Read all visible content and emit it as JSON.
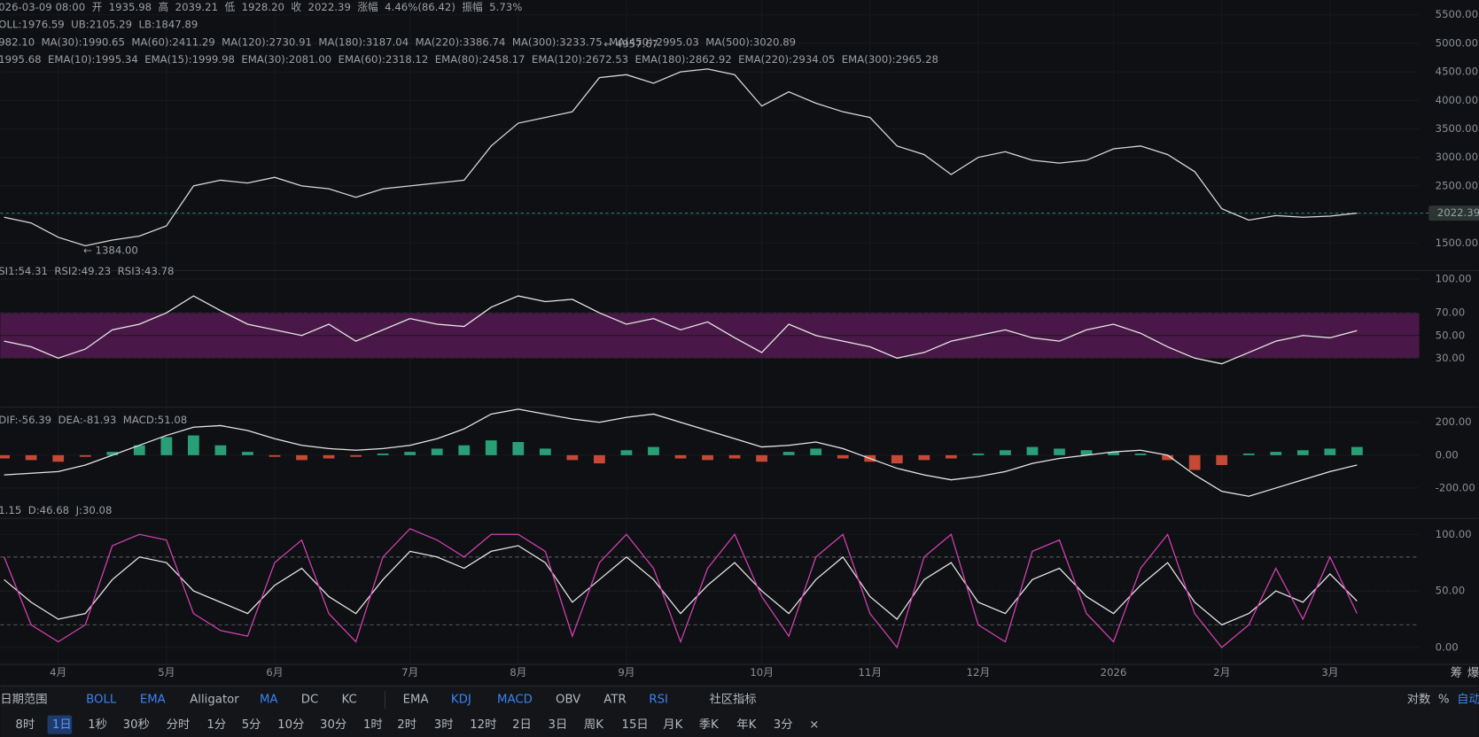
{
  "header": {
    "lines": [
      [
        {
          "text": "026-03-09 08:00",
          "color": "#9aa0a6"
        },
        {
          "text": "开",
          "color": "#9aa0a6"
        },
        {
          "text": "1935.98",
          "color": "#9aa0a6"
        },
        {
          "text": "高",
          "color": "#9aa0a6"
        },
        {
          "text": "2039.21",
          "color": "#9aa0a6"
        },
        {
          "text": "低",
          "color": "#9aa0a6"
        },
        {
          "text": "1928.20",
          "color": "#9aa0a6"
        },
        {
          "text": "收",
          "color": "#9aa0a6"
        },
        {
          "text": "2022.39",
          "color": "#9aa0a6"
        },
        {
          "text": "涨幅",
          "color": "#9aa0a6"
        },
        {
          "text": "4.46%(86.42)",
          "color": "#9aa0a6"
        },
        {
          "text": "振幅",
          "color": "#9aa0a6"
        },
        {
          "text": "5.73%",
          "color": "#9aa0a6"
        }
      ],
      [
        {
          "text": "OLL:1976.59",
          "color": "#e6e6e6"
        },
        {
          "text": "UB:2105.29",
          "color": "#f0e050"
        },
        {
          "text": "LB:1847.89",
          "color": "#e0609a"
        }
      ],
      [
        {
          "text": "982.10",
          "color": "#e6e6e6"
        },
        {
          "text": "MA(30):1990.65",
          "color": "#f0e050"
        },
        {
          "text": "MA(60):2411.29",
          "color": "#e0609a"
        },
        {
          "text": "MA(120):2730.91",
          "color": "#4aa8e0"
        },
        {
          "text": "MA(180):3187.04",
          "color": "#d8f0a0"
        },
        {
          "text": "MA(220):3386.74",
          "color": "#f080a0"
        },
        {
          "text": "MA(300):3233.75",
          "color": "#40d0e0"
        },
        {
          "text": "MA(450):2995.03",
          "color": "#e08030"
        },
        {
          "text": "MA(500):3020.89",
          "color": "#c8b0f0"
        }
      ],
      [
        {
          "text": "1995.68",
          "color": "#e6e6e6"
        },
        {
          "text": "EMA(10):1995.34",
          "color": "#f0e050"
        },
        {
          "text": "EMA(15):1999.98",
          "color": "#e0609a"
        },
        {
          "text": "EMA(30):2081.00",
          "color": "#4aa8e0"
        },
        {
          "text": "EMA(60):2318.12",
          "color": "#d8f0a0"
        },
        {
          "text": "EMA(80):2458.17",
          "color": "#f080a0"
        },
        {
          "text": "EMA(120):2672.53",
          "color": "#40d0e0"
        },
        {
          "text": "EMA(180):2862.92",
          "color": "#e08030"
        },
        {
          "text": "EMA(220):2934.05",
          "color": "#c8b0f0"
        },
        {
          "text": "EMA(300):2965.28",
          "color": "#9aa0a6"
        }
      ]
    ],
    "high_marker": "← 4957.67",
    "low_marker": "← 1384.00"
  },
  "pane_legends": [
    [
      {
        "text": "SI1:54.31",
        "color": "#e6e6e6"
      },
      {
        "text": "RSI2:49.23",
        "color": "#f0e050"
      },
      {
        "text": "RSI3:43.78",
        "color": "#e0609a"
      }
    ],
    [
      {
        "text": "DIF:-56.39",
        "color": "#e6e6e6"
      },
      {
        "text": "DEA:-81.93",
        "color": "#f0e050"
      },
      {
        "text": "MACD:51.08",
        "color": "#2eb88a"
      }
    ],
    [
      {
        "text": "1.15",
        "color": "#e6e6e6"
      },
      {
        "text": "D:46.68",
        "color": "#f0e050"
      },
      {
        "text": "J:30.08",
        "color": "#e0609a"
      }
    ]
  ],
  "chart_data": [
    {
      "type": "line",
      "categories": [
        null,
        null,
        "4月",
        null,
        null,
        null,
        "5月",
        null,
        null,
        null,
        "6月",
        null,
        null,
        null,
        null,
        "7月",
        null,
        null,
        null,
        "8月",
        null,
        null,
        null,
        "9月",
        null,
        null,
        null,
        null,
        "10月",
        null,
        null,
        null,
        "11月",
        null,
        null,
        null,
        "12月",
        null,
        null,
        null,
        null,
        "2026",
        null,
        null,
        null,
        "2月",
        null,
        null,
        null,
        "3月",
        null
      ],
      "series": [
        {
          "color": "#d8d8d8",
          "values": [
            1950,
            1850,
            1600,
            1450,
            1550,
            1620,
            1800,
            2500,
            2600,
            2550,
            2650,
            2500,
            2450,
            2300,
            2450,
            2500,
            2550,
            2600,
            3200,
            3600,
            3700,
            3800,
            4400,
            4450,
            4300,
            4500,
            4550,
            4450,
            3900,
            4150,
            3950,
            3800,
            3700,
            3200,
            3050,
            2700,
            3000,
            3100,
            2950,
            2900,
            2950,
            3150,
            3200,
            3050,
            2750,
            2100,
            1900,
            1980,
            1950,
            1970,
            2022.39
          ]
        }
      ],
      "ylim": [
        1050,
        5760
      ],
      "yticks": [
        {
          "value": 1500,
          "label": "1500.00"
        },
        {
          "value": 2000,
          "label": "2000.00"
        },
        {
          "value": 2500,
          "label": "2500.00"
        },
        {
          "value": 3000,
          "label": "3000.00"
        },
        {
          "value": 3500,
          "label": "3500.00"
        },
        {
          "value": 4000,
          "label": "4000.00"
        },
        {
          "value": 4500,
          "label": "4500.00"
        },
        {
          "value": 5000,
          "label": "5000.00"
        },
        {
          "value": 5500,
          "label": "5500.00"
        }
      ],
      "grid": true
    },
    {
      "type": "line",
      "series": [
        {
          "color": "#e6e6e6",
          "values": [
            45,
            40,
            30,
            38,
            55,
            60,
            70,
            85,
            72,
            60,
            55,
            50,
            60,
            45,
            55,
            65,
            60,
            58,
            75,
            85,
            80,
            82,
            70,
            60,
            65,
            55,
            62,
            48,
            35,
            60,
            50,
            45,
            40,
            30,
            35,
            45,
            50,
            55,
            48,
            45,
            55,
            60,
            52,
            40,
            30,
            25,
            35,
            45,
            50,
            48,
            54.31
          ]
        }
      ],
      "ylim": [
        -10,
        105
      ],
      "yticks": [
        {
          "value": 30,
          "label": "30.00"
        },
        {
          "value": 50,
          "label": "50.00"
        },
        {
          "value": 70,
          "label": "70.00"
        },
        {
          "value": 100,
          "label": "100.00"
        }
      ],
      "band": [
        30,
        70
      ],
      "band_color": "#4a1848"
    },
    {
      "type": "bar",
      "series": [
        {
          "type": "bar",
          "color": "#2eb88a",
          "negative_color": "#e5533d",
          "values": [
            -20,
            -30,
            -40,
            -10,
            20,
            60,
            110,
            120,
            60,
            20,
            -10,
            -30,
            -20,
            -10,
            10,
            20,
            40,
            60,
            90,
            80,
            40,
            -30,
            -50,
            30,
            50,
            -20,
            -30,
            -20,
            -40,
            20,
            40,
            -20,
            -40,
            -50,
            -30,
            -20,
            10,
            30,
            50,
            40,
            30,
            20,
            10,
            -30,
            -90,
            -60,
            10,
            20,
            30,
            40,
            50
          ]
        },
        {
          "type": "line",
          "color": "#e6e6e6",
          "values": [
            -120,
            -110,
            -100,
            -60,
            0,
            60,
            120,
            170,
            180,
            150,
            100,
            60,
            40,
            30,
            40,
            60,
            100,
            160,
            250,
            280,
            250,
            220,
            200,
            230,
            250,
            200,
            150,
            100,
            50,
            60,
            80,
            40,
            -20,
            -80,
            -120,
            -150,
            -130,
            -100,
            -50,
            -20,
            0,
            20,
            30,
            0,
            -120,
            -220,
            -250,
            -200,
            -150,
            -100,
            -60
          ]
        }
      ],
      "ylim": [
        -350,
        275
      ],
      "yticks": [
        {
          "value": -200,
          "label": "-200.00"
        },
        {
          "value": 0,
          "label": "0.00"
        },
        {
          "value": 200,
          "label": "200.00"
        }
      ]
    },
    {
      "type": "line",
      "series": [
        {
          "color": "#e6e6e6",
          "values": [
            60,
            40,
            25,
            30,
            60,
            80,
            75,
            50,
            40,
            30,
            55,
            70,
            45,
            30,
            60,
            85,
            80,
            70,
            85,
            90,
            75,
            40,
            60,
            80,
            60,
            30,
            55,
            75,
            50,
            30,
            60,
            80,
            45,
            25,
            60,
            75,
            40,
            30,
            60,
            70,
            45,
            30,
            55,
            75,
            40,
            20,
            30,
            50,
            40,
            65,
            41
          ]
        },
        {
          "color": "#d040b0",
          "values": [
            80,
            20,
            5,
            20,
            90,
            100,
            95,
            30,
            15,
            10,
            75,
            95,
            30,
            5,
            80,
            105,
            95,
            80,
            100,
            100,
            85,
            10,
            75,
            100,
            70,
            5,
            70,
            100,
            45,
            10,
            80,
            100,
            30,
            0,
            80,
            100,
            20,
            5,
            85,
            95,
            30,
            5,
            70,
            100,
            30,
            0,
            20,
            70,
            25,
            80,
            30
          ]
        }
      ],
      "ylim": [
        -15,
        110
      ],
      "yticks": [
        {
          "value": 0,
          "label": "0.00"
        },
        {
          "value": 50,
          "label": "50.00"
        },
        {
          "value": 100,
          "label": "100.00"
        }
      ],
      "dashed_levels": [
        20,
        50,
        80
      ]
    }
  ],
  "toolbar": {
    "row1": [
      {
        "text": "日期范围",
        "active": false
      },
      {
        "text": "BOLL",
        "active": true
      },
      {
        "text": "EMA",
        "active": true
      },
      {
        "text": "Alligator",
        "active": false
      },
      {
        "text": "MA",
        "active": true
      },
      {
        "text": "DC",
        "active": false
      },
      {
        "text": "KC",
        "active": false
      },
      {
        "text": "EMA",
        "active": false
      },
      {
        "text": "KDJ",
        "active": true
      },
      {
        "text": "MACD",
        "active": true
      },
      {
        "text": "OBV",
        "active": false
      },
      {
        "text": "ATR",
        "active": false
      },
      {
        "text": "RSI",
        "active": true
      },
      {
        "text": "社区指标",
        "active": false
      },
      {
        "text": "对数",
        "active": false
      },
      {
        "text": "%",
        "active": false
      },
      {
        "text": "自动",
        "active": true
      }
    ],
    "row2": [
      {
        "text": "8时",
        "active": false
      },
      {
        "text": "1日",
        "active": true
      },
      {
        "text": "1秒",
        "active": false
      },
      {
        "text": "30秒",
        "active": false
      },
      {
        "text": "分时",
        "active": false
      },
      {
        "text": "1分",
        "active": false
      },
      {
        "text": "5分",
        "active": false
      },
      {
        "text": "10分",
        "active": false
      },
      {
        "text": "30分",
        "active": false
      },
      {
        "text": "1时",
        "active": false
      },
      {
        "text": "2时",
        "active": false
      },
      {
        "text": "3时",
        "active": false
      },
      {
        "text": "12时",
        "active": false
      },
      {
        "text": "2日",
        "active": false
      },
      {
        "text": "3日",
        "active": false
      },
      {
        "text": "周K",
        "active": false
      },
      {
        "text": "15日",
        "active": false
      },
      {
        "text": "月K",
        "active": false
      },
      {
        "text": "季K",
        "active": false
      },
      {
        "text": "年K",
        "active": false
      },
      {
        "text": "3分",
        "active": false
      },
      {
        "text": "×",
        "active": false
      }
    ],
    "axis_buttons": [
      "筹",
      "爆"
    ]
  }
}
